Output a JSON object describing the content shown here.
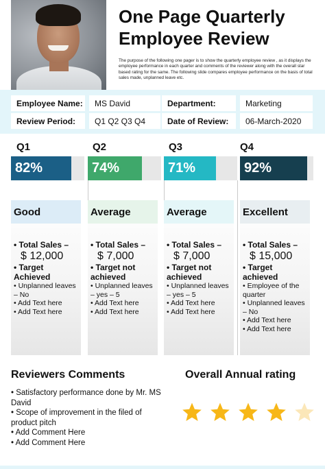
{
  "header": {
    "title": "One Page Quarterly Employee Review",
    "intro": "The purpose of the following one pager is to show the quarterly employee review , as it displays the employee performance in each quarter and comments of the reviewer along with the overall star based rating for the same. The following slide compares employee performance on the basis of total sales made, unplanned leave etc."
  },
  "info": {
    "employee_name_label": "Employee Name:",
    "employee_name": "MS David",
    "review_period_label": "Review Period:",
    "review_period": "Q1 Q2 Q3 Q4",
    "department_label": "Department:",
    "department": "Marketing",
    "date_label": "Date of Review:",
    "date": "06-March-2020"
  },
  "quarters": [
    {
      "label": "Q1",
      "percent_text": "82%",
      "value": 82,
      "color": "#1b5f86",
      "rating": "Good",
      "head_color": "#dcecf7",
      "sales_label": "• Total Sales –",
      "sales": "$ 12,000",
      "target": "• Target Achieved",
      "details": [
        "• Unplanned leaves – No",
        "• Add Text here",
        "• Add Text here"
      ]
    },
    {
      "label": "Q2",
      "percent_text": "74%",
      "value": 74,
      "color": "#3fa86b",
      "rating": "Average",
      "head_color": "#e6f4ea",
      "sales_label": "• Total Sales –",
      "sales": "$ 7,000",
      "target": "• Target not achieved",
      "details": [
        "• Unplanned leaves – yes – 5",
        "• Add Text here",
        "• Add Text here"
      ]
    },
    {
      "label": "Q3",
      "percent_text": "71%",
      "value": 71,
      "color": "#24b8c4",
      "rating": "Average",
      "head_color": "#e4f6f8",
      "sales_label": "• Total Sales –",
      "sales": "$ 7,000",
      "target": "• Target not achieved",
      "details": [
        "• Unplanned leaves – yes – 5",
        "• Add Text here",
        "• Add Text here"
      ]
    },
    {
      "label": "Q4",
      "percent_text": "92%",
      "value": 92,
      "color": "#163f4f",
      "rating": "Excellent",
      "head_color": "#e8eef1",
      "sales_label": "• Total Sales –",
      "sales": "$ 15,000",
      "target": "• Target achieved",
      "details": [
        "• Employee of the quarter",
        "• Unplanned leaves – No",
        "• Add Text here",
        "• Add Text here"
      ]
    }
  ],
  "reviewers": {
    "title": "Reviewers Comments",
    "comments": [
      "• Satisfactory performance done by Mr. MS David",
      "• Scope of improvement in the filed of product pitch",
      "• Add Comment Here",
      "• Add Comment Here"
    ]
  },
  "rating": {
    "title": "Overall Annual rating",
    "stars": 4,
    "max": 5,
    "filled_color": "#f7b718",
    "empty_color": "#fbe7b8"
  }
}
